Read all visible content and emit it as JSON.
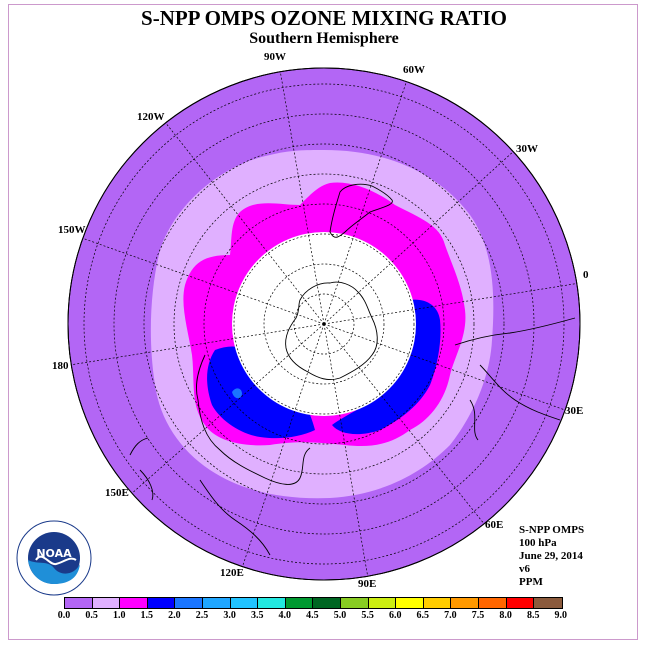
{
  "header": {
    "title": "S-NPP OMPS OZONE MIXING RATIO",
    "subtitle": "Southern Hemisphere"
  },
  "longitude_labels": [
    {
      "text": "90W"
    },
    {
      "text": "60W"
    },
    {
      "text": "30W"
    },
    {
      "text": "0"
    },
    {
      "text": "30E"
    },
    {
      "text": "60E"
    },
    {
      "text": "90E"
    },
    {
      "text": "120E"
    },
    {
      "text": "150E"
    },
    {
      "text": "180"
    },
    {
      "text": "150W"
    },
    {
      "text": "120W"
    }
  ],
  "info": {
    "instrument": "S-NPP OMPS",
    "level": "100 hPa",
    "date": "June 29, 2014",
    "version": "v6",
    "units": "PPM"
  },
  "logo": {
    "text": "NOAA"
  },
  "colorbar": {
    "ticks": [
      "0.0",
      "0.5",
      "1.0",
      "1.5",
      "2.0",
      "2.5",
      "3.0",
      "3.5",
      "4.0",
      "4.5",
      "5.0",
      "5.5",
      "6.0",
      "6.5",
      "7.0",
      "7.5",
      "8.0",
      "8.5",
      "9.0"
    ],
    "colors": [
      "#b366f5",
      "#e0b0ff",
      "#ff00ff",
      "#0000ff",
      "#1a75ff",
      "#1fa6ff",
      "#21c3ff",
      "#22e8e0",
      "#009930",
      "#006622",
      "#88cc22",
      "#ccee11",
      "#ffff00",
      "#ffcc00",
      "#ff9900",
      "#ff6600",
      "#ff0000",
      "#8b5a3c"
    ]
  },
  "colors": {
    "background_band": "#b366f5",
    "band_0_5": "#e0b0ff",
    "band_1_0": "#ff00ff",
    "band_1_5": "#0000ff",
    "no_data": "#ffffff"
  }
}
